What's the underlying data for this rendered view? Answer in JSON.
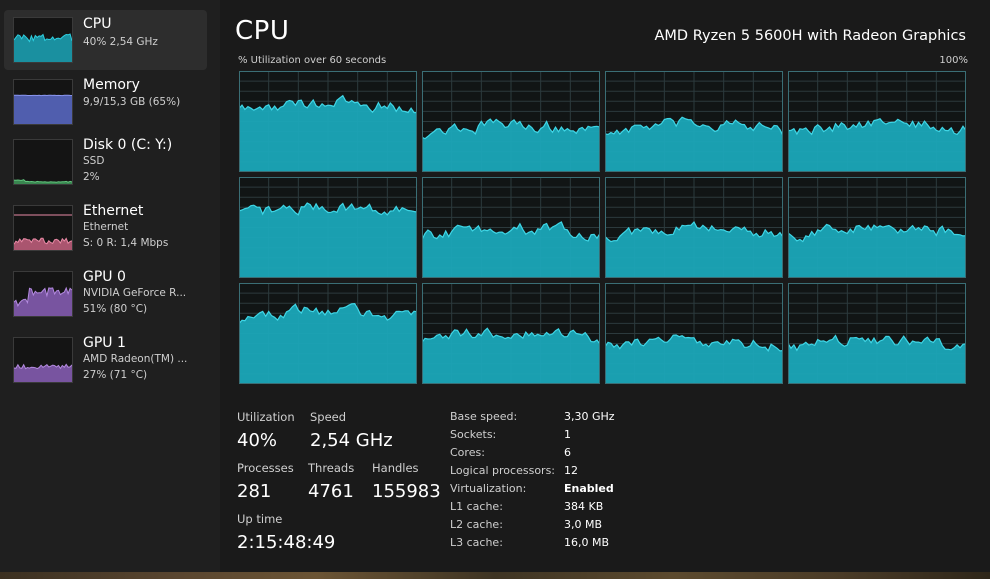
{
  "sidebar": {
    "items": [
      {
        "title": "CPU",
        "sub1": "40% 2,54 GHz",
        "sub2": "",
        "selected": true,
        "color": "#1ba6b8",
        "line": "#2ecfe0",
        "level": 0.55,
        "kind": "cpu"
      },
      {
        "title": "Memory",
        "sub1": "9,9/15,3 GB (65%)",
        "sub2": "",
        "selected": false,
        "color": "#5b6bc9",
        "line": "#8a96f0",
        "level": 0.65,
        "kind": "flat"
      },
      {
        "title": "Disk 0 (C: Y:)",
        "sub1": "SSD",
        "sub2": "2%",
        "selected": false,
        "color": "#3f9a5a",
        "line": "#62c47d",
        "level": 0.04,
        "kind": "low"
      },
      {
        "title": "Ethernet",
        "sub1": "Ethernet",
        "sub2": "S: 0 R: 1,4 Mbps",
        "selected": false,
        "color": "#c4607f",
        "line": "#e98aa6",
        "level": 0.2,
        "kind": "eth"
      },
      {
        "title": "GPU 0",
        "sub1": "NVIDIA GeForce R...",
        "sub2": "51% (80 °C)",
        "selected": false,
        "color": "#8a5fb8",
        "line": "#b48ae0",
        "level": 0.55,
        "kind": "gpu"
      },
      {
        "title": "GPU 1",
        "sub1": "AMD Radeon(TM) ...",
        "sub2": "27% (71 °C)",
        "selected": false,
        "color": "#8a5fb8",
        "line": "#b48ae0",
        "level": 0.35,
        "kind": "gpu1"
      }
    ]
  },
  "header": {
    "title": "CPU",
    "model": "AMD Ryzen 5 5600H with Radeon Graphics",
    "graph_caption": "% Utilization over 60 seconds",
    "graph_max": "100%"
  },
  "graph": {
    "fill_color": "#1ba6b8",
    "line_color": "#3fd6e6",
    "grid_color": "#2c3a3d",
    "border_color": "#3a6e75",
    "core_count": 12
  },
  "stats": {
    "utilization_label": "Utilization",
    "utilization_value": "40%",
    "speed_label": "Speed",
    "speed_value": "2,54 GHz",
    "processes_label": "Processes",
    "processes_value": "281",
    "threads_label": "Threads",
    "threads_value": "4761",
    "handles_label": "Handles",
    "handles_value": "155983",
    "uptime_label": "Up time",
    "uptime_value": "2:15:48:49"
  },
  "specs": [
    {
      "label": "Base speed:",
      "value": "3,30 GHz",
      "bold": false
    },
    {
      "label": "Sockets:",
      "value": "1",
      "bold": false
    },
    {
      "label": "Cores:",
      "value": "6",
      "bold": false
    },
    {
      "label": "Logical processors:",
      "value": "12",
      "bold": false
    },
    {
      "label": "Virtualization:",
      "value": "Enabled",
      "bold": true
    },
    {
      "label": "L1 cache:",
      "value": "384 KB",
      "bold": false
    },
    {
      "label": "L2 cache:",
      "value": "3,0 MB",
      "bold": false
    },
    {
      "label": "L3 cache:",
      "value": "16,0 MB",
      "bold": false
    }
  ]
}
